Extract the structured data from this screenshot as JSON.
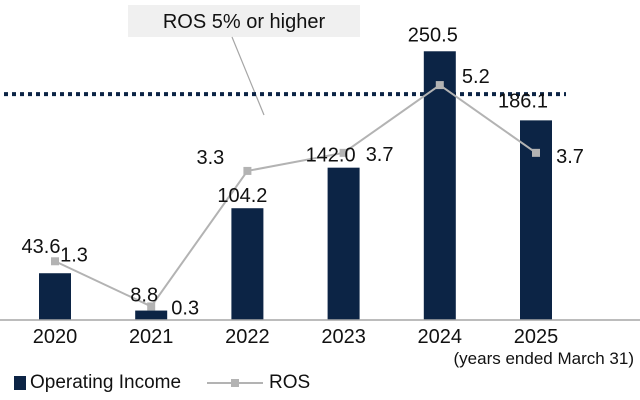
{
  "chart_data": {
    "type": "bar",
    "categories": [
      "2020",
      "2021",
      "2022",
      "2023",
      "2024",
      "2025"
    ],
    "series": [
      {
        "name": "Operating Income",
        "type": "bar",
        "values": [
          43.6,
          8.8,
          104.2,
          142.0,
          250.5,
          186.1
        ]
      },
      {
        "name": "ROS",
        "type": "line",
        "values": [
          1.3,
          0.3,
          3.3,
          3.7,
          5.2,
          3.7
        ]
      }
    ],
    "value_labels": {
      "bars": [
        "43.6",
        "8.8",
        "104.2",
        "142.0",
        "250.5",
        "186.1"
      ],
      "line": [
        "1.3",
        "0.3",
        "3.3",
        "3.7",
        "5.2",
        "3.7"
      ]
    },
    "target_line": {
      "value": 5,
      "label": "ROS 5% or higher"
    },
    "axis_note": "(years ended March 31)",
    "ylim": [
      0,
      275
    ],
    "ros_lim": [
      0,
      6.53
    ],
    "grid": false,
    "legend_position": "bottom-left",
    "colors": {
      "bar": "#0c2445",
      "line": "#b3b3b3",
      "target": "#0c2445",
      "callout_bg": "#f0f0f0",
      "axis": "#a6a6a6"
    }
  }
}
